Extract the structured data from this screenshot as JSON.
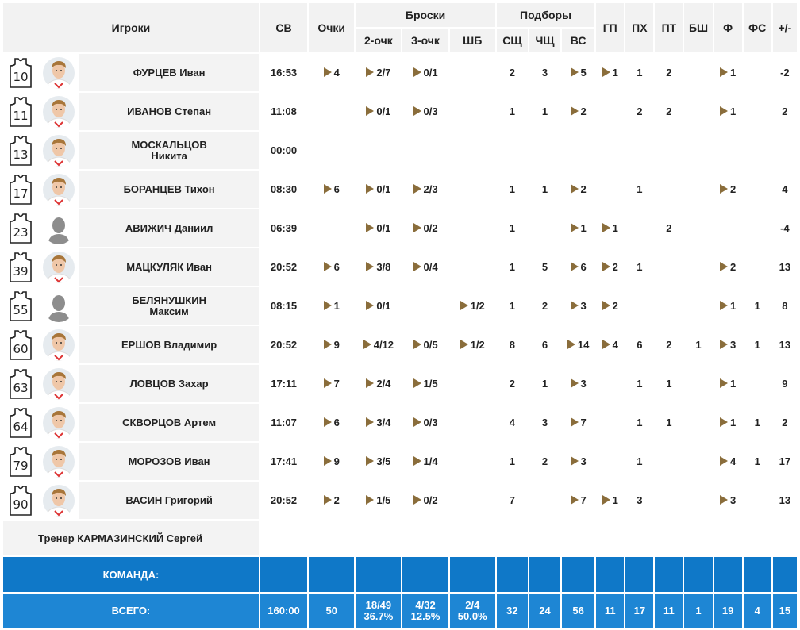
{
  "header": {
    "players": "Игроки",
    "sv": "СВ",
    "points": "Очки",
    "shots": "Броски",
    "two": "2-очк",
    "three": "3-очк",
    "ft": "ШБ",
    "rebounds": "Подборы",
    "def": "СЩ",
    "off": "ЧЩ",
    "total_reb": "ВС",
    "gp": "ГП",
    "px": "ПХ",
    "pt": "ПТ",
    "bsh": "БШ",
    "f": "Ф",
    "fs": "ФС",
    "pm": "+/-"
  },
  "players": [
    {
      "num": "10",
      "name1": "ФУРЦЕВ Иван",
      "name2": "",
      "sv": "16:53",
      "pts": "4",
      "pts_a": true,
      "two": "2/7",
      "two_a": true,
      "three": "0/1",
      "three_a": true,
      "ft": "",
      "ft_a": false,
      "def": "2",
      "off": "3",
      "reb": "5",
      "reb_a": true,
      "gp": "1",
      "gp_a": true,
      "px": "1",
      "pt": "2",
      "bsh": "",
      "f": "1",
      "f_a": true,
      "fs": "",
      "pm": "-2",
      "photo": "kid"
    },
    {
      "num": "11",
      "name1": "ИВАНОВ Степан",
      "name2": "",
      "sv": "11:08",
      "pts": "",
      "pts_a": false,
      "two": "0/1",
      "two_a": true,
      "three": "0/3",
      "three_a": true,
      "ft": "",
      "ft_a": false,
      "def": "1",
      "off": "1",
      "reb": "2",
      "reb_a": true,
      "gp": "",
      "gp_a": false,
      "px": "2",
      "pt": "2",
      "bsh": "",
      "f": "1",
      "f_a": true,
      "fs": "",
      "pm": "2",
      "photo": "kid"
    },
    {
      "num": "13",
      "name1": "МОСКАЛЬЦОВ",
      "name2": "Никита",
      "sv": "00:00",
      "pts": "",
      "pts_a": false,
      "two": "",
      "two_a": false,
      "three": "",
      "three_a": false,
      "ft": "",
      "ft_a": false,
      "def": "",
      "off": "",
      "reb": "",
      "reb_a": false,
      "gp": "",
      "gp_a": false,
      "px": "",
      "pt": "",
      "bsh": "",
      "f": "",
      "f_a": false,
      "fs": "",
      "pm": "",
      "photo": "kid"
    },
    {
      "num": "17",
      "name1": "БОРАНЦЕВ Тихон",
      "name2": "",
      "sv": "08:30",
      "pts": "6",
      "pts_a": true,
      "two": "0/1",
      "two_a": true,
      "three": "2/3",
      "three_a": true,
      "ft": "",
      "ft_a": false,
      "def": "1",
      "off": "1",
      "reb": "2",
      "reb_a": true,
      "gp": "",
      "gp_a": false,
      "px": "1",
      "pt": "",
      "bsh": "",
      "f": "2",
      "f_a": true,
      "fs": "",
      "pm": "4",
      "photo": "kid"
    },
    {
      "num": "23",
      "name1": "АВИЖИЧ Даниил",
      "name2": "",
      "sv": "06:39",
      "pts": "",
      "pts_a": false,
      "two": "0/1",
      "two_a": true,
      "three": "0/2",
      "three_a": true,
      "ft": "",
      "ft_a": false,
      "def": "1",
      "off": "",
      "reb": "1",
      "reb_a": true,
      "gp": "1",
      "gp_a": true,
      "px": "",
      "pt": "2",
      "bsh": "",
      "f": "",
      "f_a": false,
      "fs": "",
      "pm": "-4",
      "photo": "none"
    },
    {
      "num": "39",
      "name1": "МАЦКУЛЯК Иван",
      "name2": "",
      "sv": "20:52",
      "pts": "6",
      "pts_a": true,
      "two": "3/8",
      "two_a": true,
      "three": "0/4",
      "three_a": true,
      "ft": "",
      "ft_a": false,
      "def": "1",
      "off": "5",
      "reb": "6",
      "reb_a": true,
      "gp": "2",
      "gp_a": true,
      "px": "1",
      "pt": "",
      "bsh": "",
      "f": "2",
      "f_a": true,
      "fs": "",
      "pm": "13",
      "photo": "kid"
    },
    {
      "num": "55",
      "name1": "БЕЛЯНУШКИН",
      "name2": "Максим",
      "sv": "08:15",
      "pts": "1",
      "pts_a": true,
      "two": "0/1",
      "two_a": true,
      "three": "",
      "three_a": false,
      "ft": "1/2",
      "ft_a": true,
      "def": "1",
      "off": "2",
      "reb": "3",
      "reb_a": true,
      "gp": "2",
      "gp_a": true,
      "px": "",
      "pt": "",
      "bsh": "",
      "f": "1",
      "f_a": true,
      "fs": "1",
      "pm": "8",
      "photo": "none"
    },
    {
      "num": "60",
      "name1": "ЕРШОВ Владимир",
      "name2": "",
      "sv": "20:52",
      "pts": "9",
      "pts_a": true,
      "two": "4/12",
      "two_a": true,
      "three": "0/5",
      "three_a": true,
      "ft": "1/2",
      "ft_a": true,
      "def": "8",
      "off": "6",
      "reb": "14",
      "reb_a": true,
      "gp": "4",
      "gp_a": true,
      "px": "6",
      "pt": "2",
      "bsh": "1",
      "f": "3",
      "f_a": true,
      "fs": "1",
      "pm": "13",
      "photo": "kid"
    },
    {
      "num": "63",
      "name1": "ЛОВЦОВ Захар",
      "name2": "",
      "sv": "17:11",
      "pts": "7",
      "pts_a": true,
      "two": "2/4",
      "two_a": true,
      "three": "1/5",
      "three_a": true,
      "ft": "",
      "ft_a": false,
      "def": "2",
      "off": "1",
      "reb": "3",
      "reb_a": true,
      "gp": "",
      "gp_a": false,
      "px": "1",
      "pt": "1",
      "bsh": "",
      "f": "1",
      "f_a": true,
      "fs": "",
      "pm": "9",
      "photo": "kid"
    },
    {
      "num": "64",
      "name1": "СКВОРЦОВ Артем",
      "name2": "",
      "sv": "11:07",
      "pts": "6",
      "pts_a": true,
      "two": "3/4",
      "two_a": true,
      "three": "0/3",
      "three_a": true,
      "ft": "",
      "ft_a": false,
      "def": "4",
      "off": "3",
      "reb": "7",
      "reb_a": true,
      "gp": "",
      "gp_a": false,
      "px": "1",
      "pt": "1",
      "bsh": "",
      "f": "1",
      "f_a": true,
      "fs": "1",
      "pm": "2",
      "photo": "kid"
    },
    {
      "num": "79",
      "name1": "МОРОЗОВ Иван",
      "name2": "",
      "sv": "17:41",
      "pts": "9",
      "pts_a": true,
      "two": "3/5",
      "two_a": true,
      "three": "1/4",
      "three_a": true,
      "ft": "",
      "ft_a": false,
      "def": "1",
      "off": "2",
      "reb": "3",
      "reb_a": true,
      "gp": "",
      "gp_a": false,
      "px": "1",
      "pt": "",
      "bsh": "",
      "f": "4",
      "f_a": true,
      "fs": "1",
      "pm": "17",
      "photo": "kid"
    },
    {
      "num": "90",
      "name1": "ВАСИН Григорий",
      "name2": "",
      "sv": "20:52",
      "pts": "2",
      "pts_a": true,
      "two": "1/5",
      "two_a": true,
      "three": "0/2",
      "three_a": true,
      "ft": "",
      "ft_a": false,
      "def": "7",
      "off": "",
      "reb": "7",
      "reb_a": true,
      "gp": "1",
      "gp_a": true,
      "px": "3",
      "pt": "",
      "bsh": "",
      "f": "3",
      "f_a": true,
      "fs": "",
      "pm": "13",
      "photo": "kid"
    }
  ],
  "coach": "Тренер КАРМАЗИНСКИЙ Сергей",
  "team_label": "КОМАНДА:",
  "total": {
    "label": "ВСЕГО:",
    "sv": "160:00",
    "pts": "50",
    "two_1": "18/49",
    "two_2": "36.7%",
    "three_1": "4/32",
    "three_2": "12.5%",
    "ft_1": "2/4",
    "ft_2": "50.0%",
    "def": "32",
    "off": "24",
    "reb": "56",
    "gp": "11",
    "px": "17",
    "pt": "11",
    "bsh": "1",
    "f": "19",
    "fs": "4",
    "pm": "15"
  },
  "colors": {
    "team_bg": "#0f78c8",
    "total_bg": "#1e86d4",
    "arrow": "#8a6d3b"
  }
}
